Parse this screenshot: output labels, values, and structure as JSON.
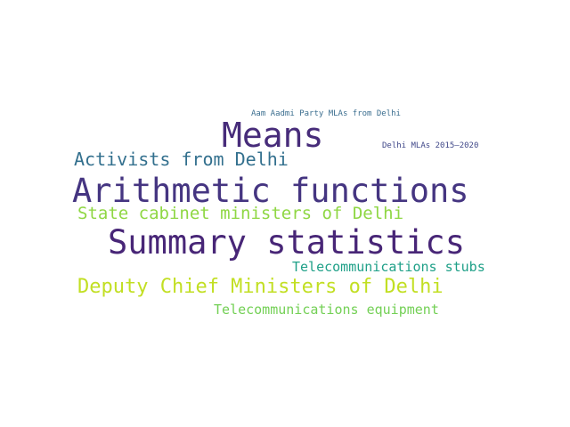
{
  "words": [
    {
      "text": "Aam Aadmi Party MLAs from Delhi",
      "color": "#3b6e8f"
    },
    {
      "text": "Means",
      "color": "#472c7a"
    },
    {
      "text": "Delhi MLAs 2015–2020",
      "color": "#3f4788"
    },
    {
      "text": "Activists from Delhi",
      "color": "#33708e"
    },
    {
      "text": "Arithmetic functions",
      "color": "#453581"
    },
    {
      "text": "State cabinet ministers of Delhi",
      "color": "#8fd744"
    },
    {
      "text": "Summary statistics",
      "color": "#482677"
    },
    {
      "text": "Telecommunications stubs",
      "color": "#1fa088"
    },
    {
      "text": "Deputy Chief Ministers of Delhi",
      "color": "#c2df23"
    },
    {
      "text": "Telecommunications equipment",
      "color": "#73d055"
    }
  ]
}
